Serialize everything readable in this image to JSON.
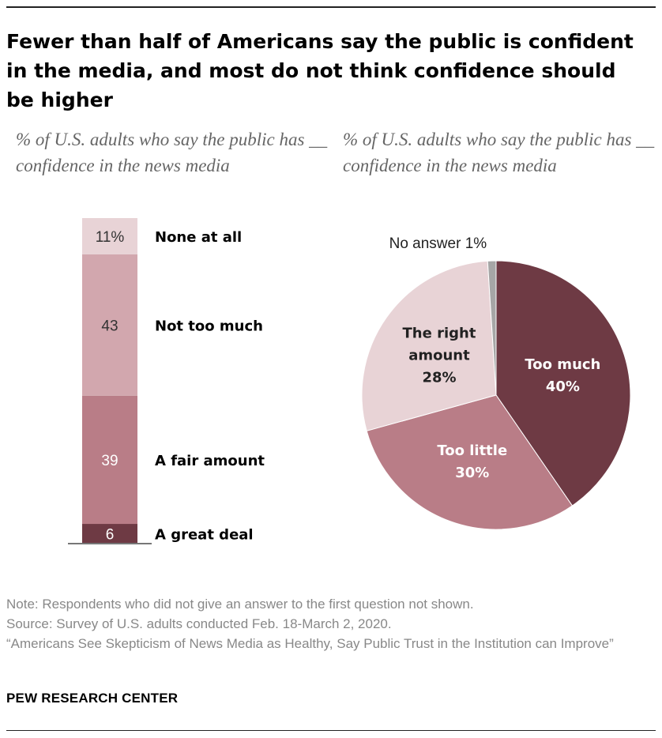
{
  "title": "Fewer than half of Americans say the public is confident in the media, and most do not think confidence should be higher",
  "colors": {
    "dark": "#6e3a44",
    "mid": "#b97d87",
    "light": "#d2a7ae",
    "pale": "#e8d3d6",
    "gray": "#a6a6a6"
  },
  "chart_data": [
    {
      "type": "bar",
      "subtype": "stacked-100",
      "subtitle": "% of U.S. adults who say the public has __ confidence in the news media",
      "segments": [
        {
          "label": "A great deal",
          "value": 6,
          "value_label": "6"
        },
        {
          "label": "A fair amount",
          "value": 39,
          "value_label": "39"
        },
        {
          "label": "Not too much",
          "value": 43,
          "value_label": "43"
        },
        {
          "label": "None at all",
          "value": 11,
          "value_label": "11%"
        }
      ]
    },
    {
      "type": "pie",
      "subtitle": "% of U.S. adults who say the public has __ confidence in the news media",
      "slices": [
        {
          "label": "Too much",
          "value": 40,
          "value_label": "40%"
        },
        {
          "label": "Too little",
          "value": 30,
          "value_label": "30%"
        },
        {
          "label": "The right amount",
          "value": 28,
          "value_label": "28%"
        },
        {
          "label": "No answer",
          "value": 1,
          "value_label": "1%"
        }
      ]
    }
  ],
  "notes": {
    "note": "Note: Respondents who did not give an answer to the first question not shown.",
    "source": "Source: Survey of U.S. adults conducted Feb. 18-March 2, 2020.",
    "report": "“Americans See Skepticism of News Media as Healthy, Say Public Trust in the Institution can Improve”"
  },
  "brand": "PEW RESEARCH CENTER"
}
